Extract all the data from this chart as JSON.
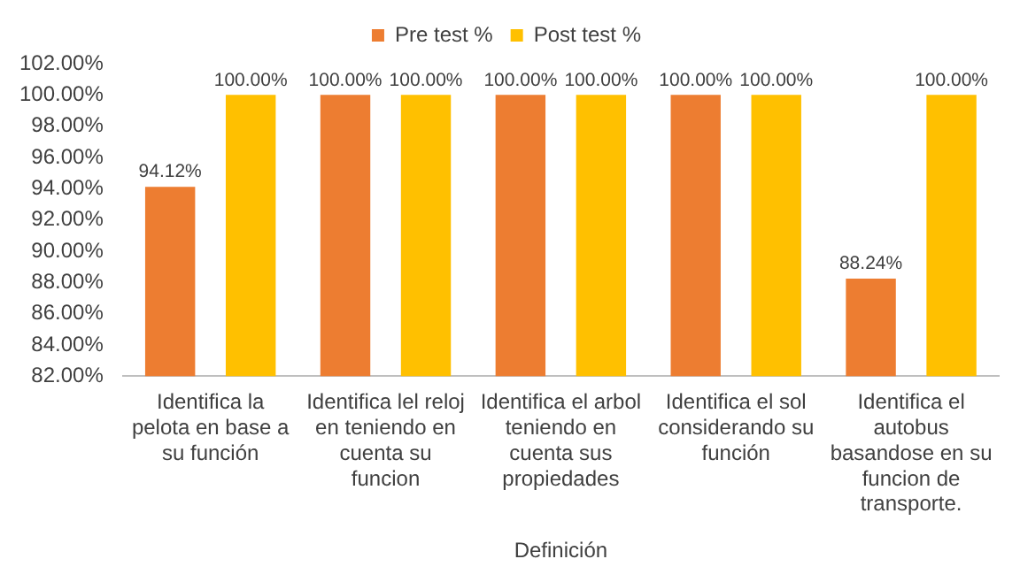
{
  "chart_data": {
    "type": "bar",
    "xlabel": "Definición",
    "categories": [
      "Identifica la pelota en base a su función",
      "Identifica lel reloj en teniendo en cuenta su funcion",
      "Identifica el arbol teniendo en cuenta sus propiedades",
      "Identifica el sol considerando su función",
      "Identifica el autobus basandose en su funcion de transporte."
    ],
    "series": [
      {
        "name": "Pre test %",
        "color": "#ed7d31",
        "values": [
          94.12,
          100,
          100,
          100,
          88.24
        ],
        "value_labels": [
          "94.12%",
          "100.00%",
          "100.00%",
          "100.00%",
          "88.24%"
        ]
      },
      {
        "name": "Post test %",
        "color": "#ffc000",
        "values": [
          100,
          100,
          100,
          100,
          100
        ],
        "value_labels": [
          "100.00%",
          "100.00%",
          "100.00%",
          "100.00%",
          "100.00%"
        ]
      }
    ],
    "ylim": [
      82,
      102
    ],
    "yticks": [
      {
        "value": 82,
        "label": "82.00%"
      },
      {
        "value": 84,
        "label": "84.00%"
      },
      {
        "value": 86,
        "label": "86.00%"
      },
      {
        "value": 88,
        "label": "88.00%"
      },
      {
        "value": 90,
        "label": "90.00%"
      },
      {
        "value": 92,
        "label": "92.00%"
      },
      {
        "value": 94,
        "label": "94.00%"
      },
      {
        "value": 96,
        "label": "96.00%"
      },
      {
        "value": 98,
        "label": "98.00%"
      },
      {
        "value": 100,
        "label": "100.00%"
      },
      {
        "value": 102,
        "label": "102.00%"
      }
    ],
    "grid": false,
    "legend": "top"
  }
}
